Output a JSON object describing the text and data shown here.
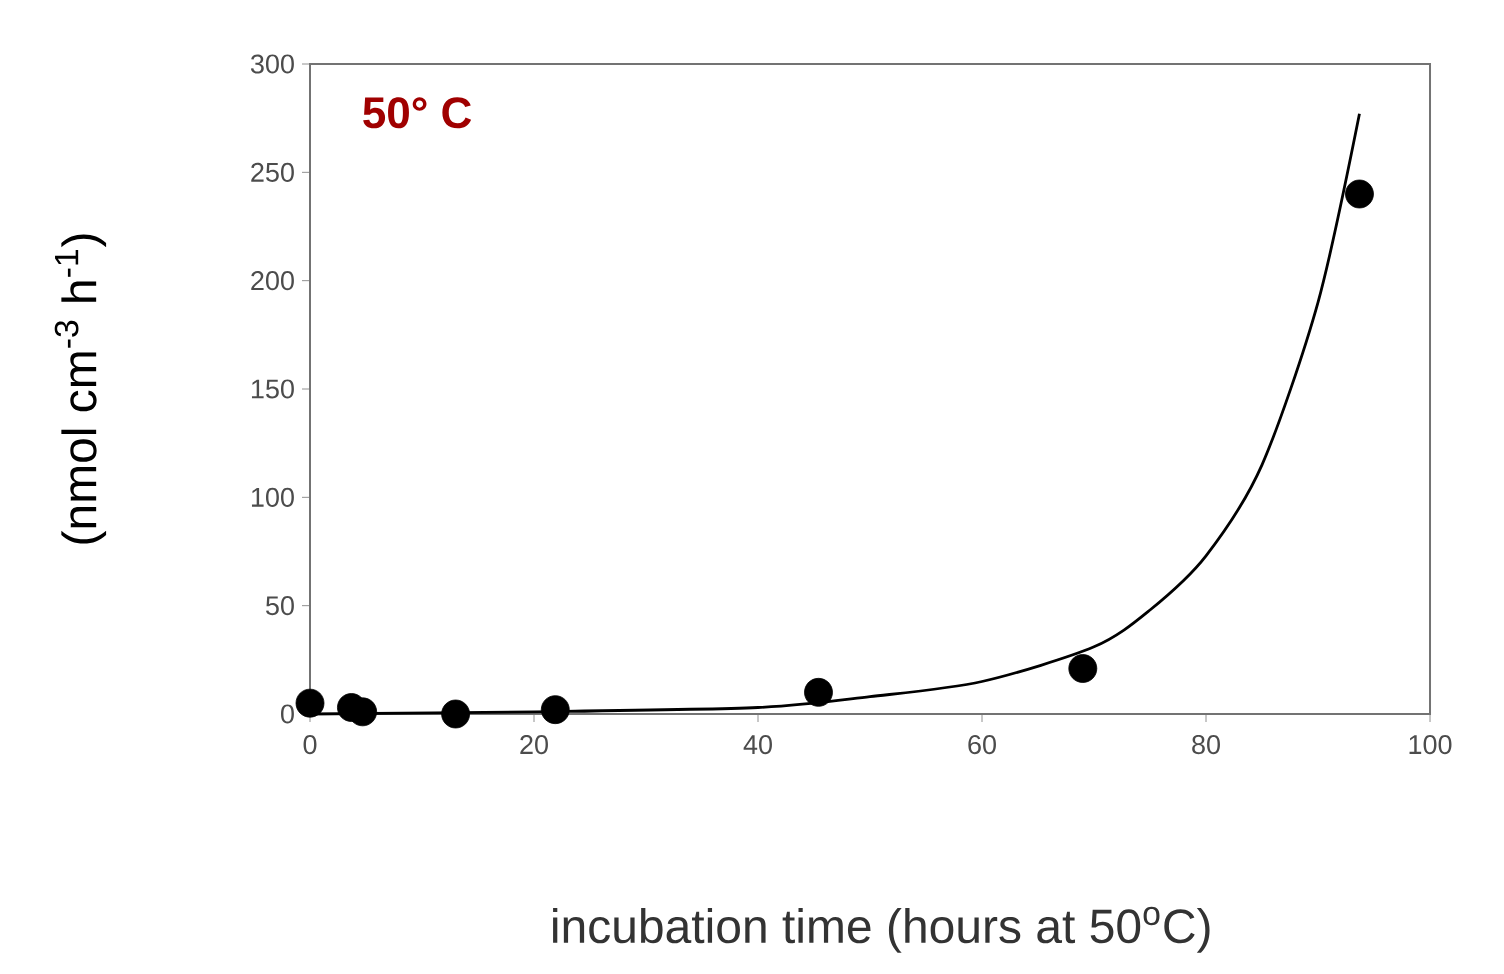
{
  "chart_data": {
    "type": "scatter",
    "xlabel": "incubation time (hours at 50$^{o}$C)",
    "ylabel": "(nmol cm$^{-3}$ h$^{-1}$)",
    "annotations": [
      "50° C"
    ],
    "xlim": [
      0,
      100
    ],
    "ylim": [
      0,
      300
    ],
    "xticks": [
      0,
      20,
      40,
      60,
      80,
      100
    ],
    "yticks": [
      0,
      50,
      100,
      150,
      200,
      250,
      300
    ],
    "series": [
      {
        "color": "#000000",
        "marker": "circle",
        "x": [
          0,
          3.7,
          4.7,
          13,
          21.9,
          45.4,
          69,
          93.7
        ],
        "values": [
          5,
          3,
          1,
          0,
          2,
          10,
          21,
          240
        ]
      },
      {
        "type": "line",
        "color": "#000000",
        "marker": "none",
        "line_style": "solid",
        "x": [
          0,
          20,
          40,
          50,
          60,
          70,
          75,
          80,
          85,
          90,
          93.7
        ],
        "values": [
          0,
          1,
          3,
          8,
          15,
          31,
          48,
          73,
          115,
          190,
          277
        ]
      }
    ]
  }
}
